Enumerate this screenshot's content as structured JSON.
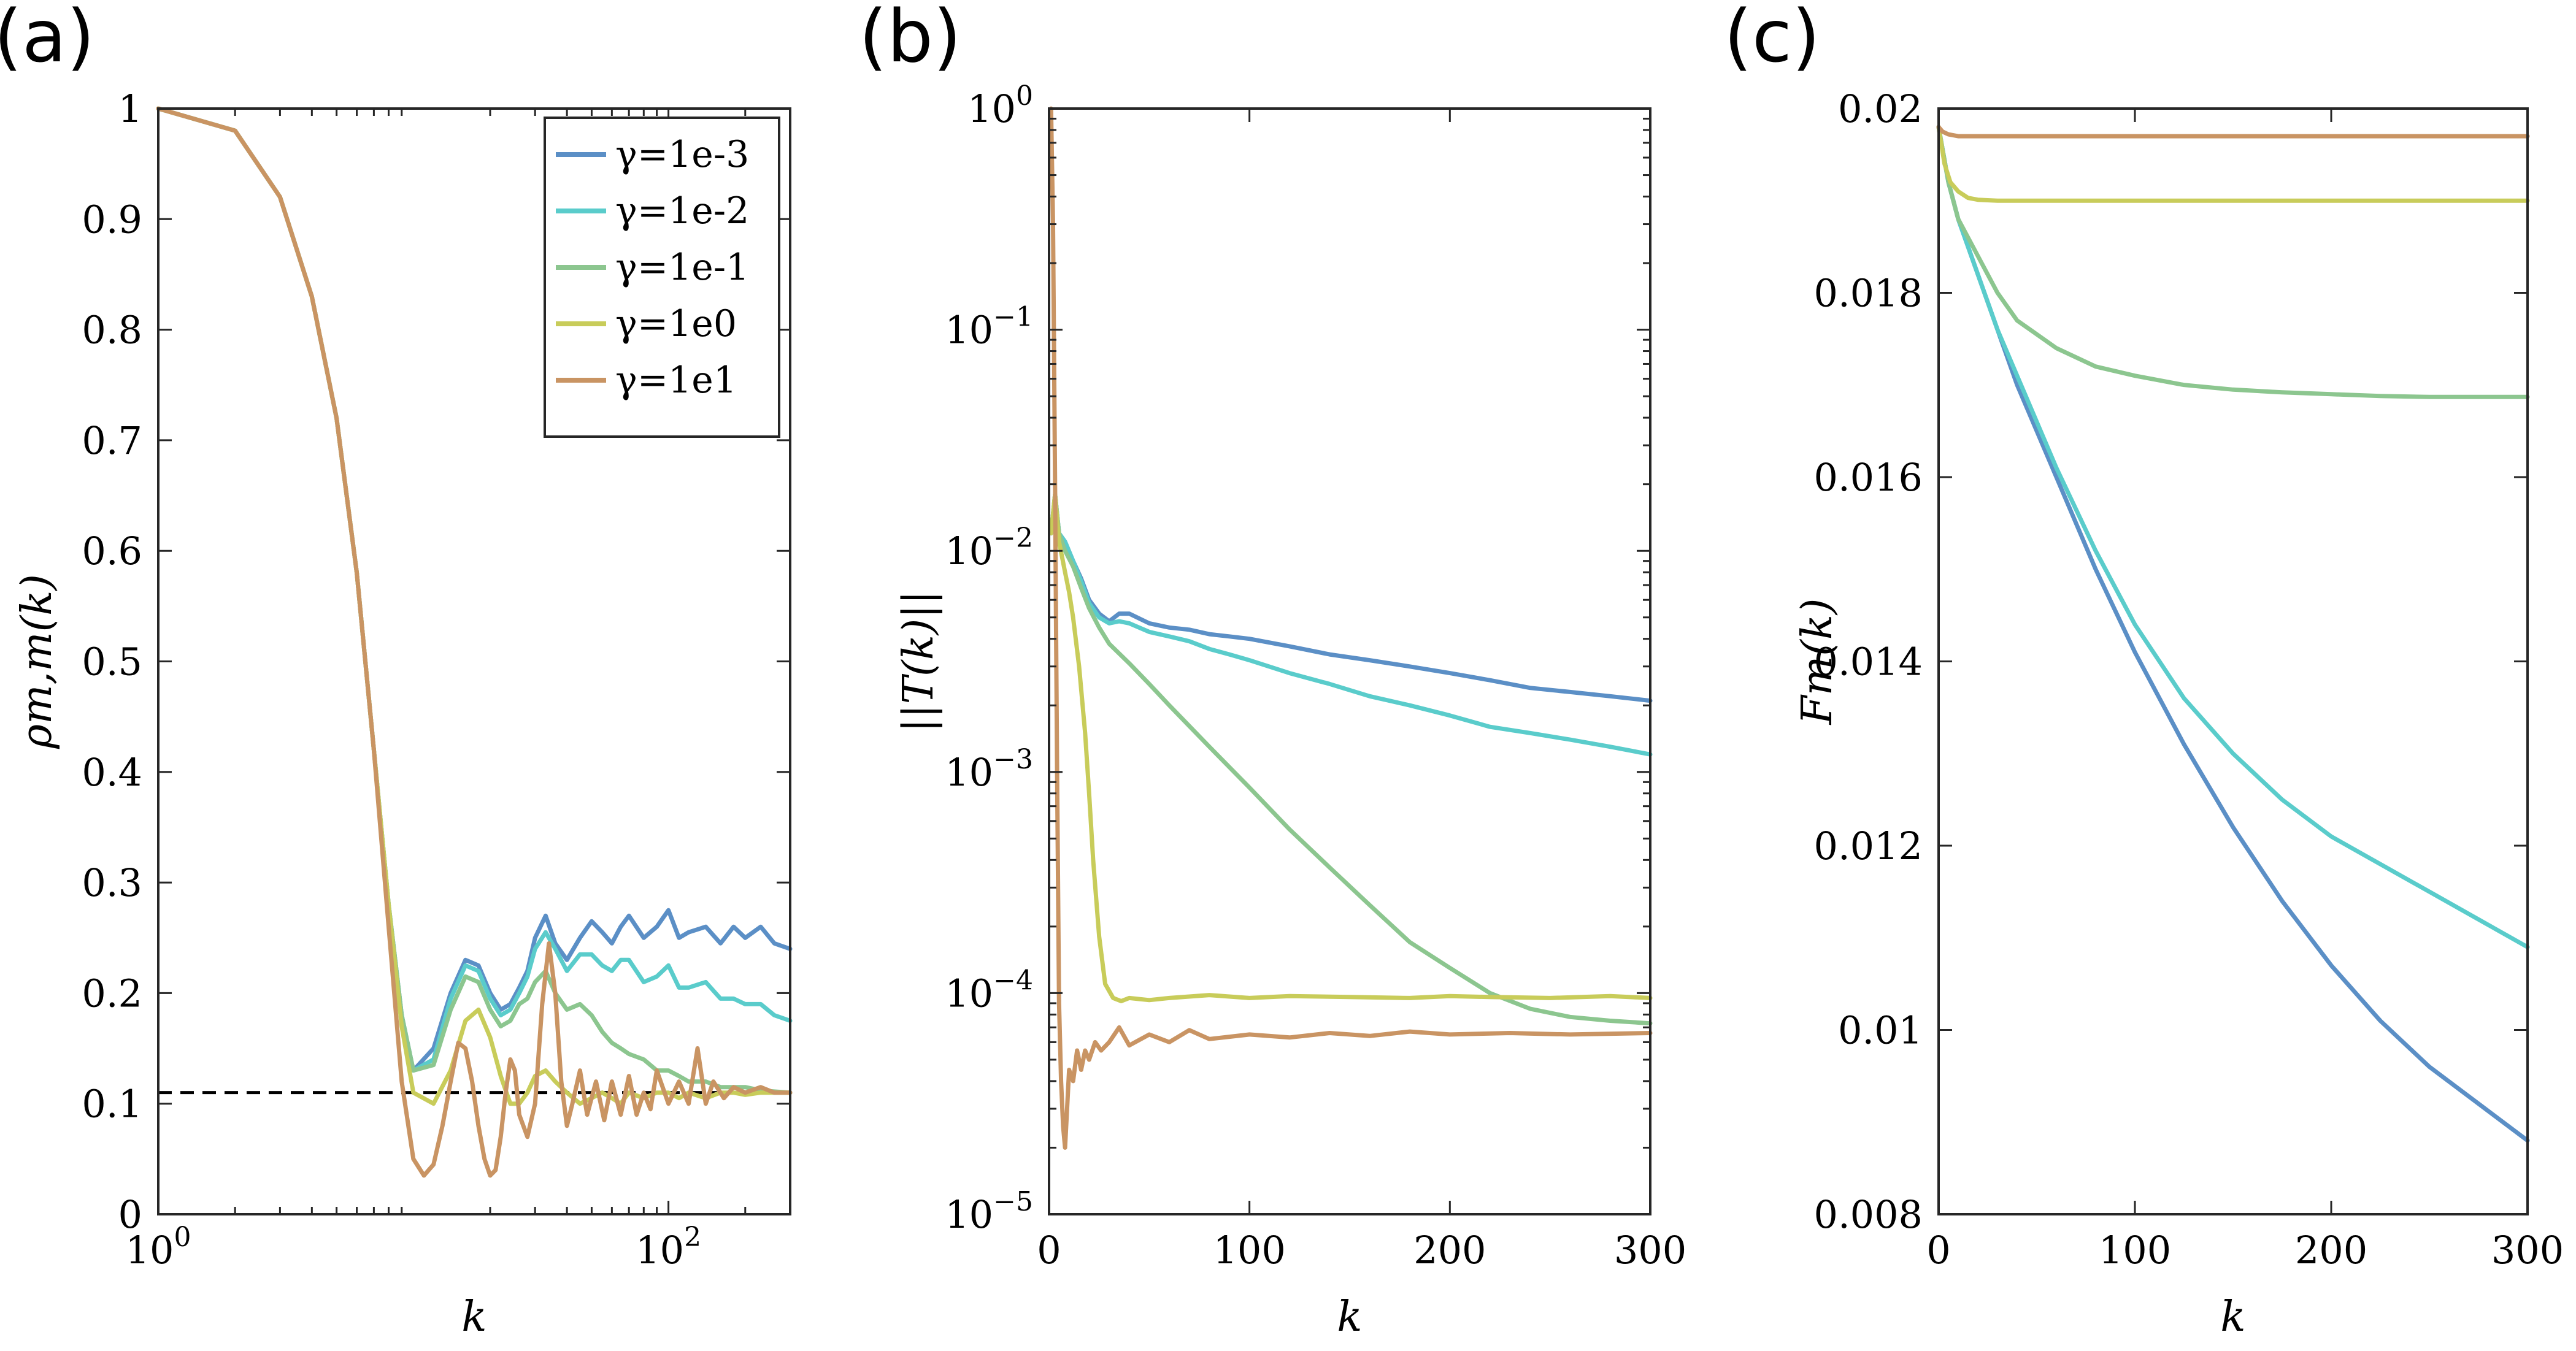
{
  "legend": [
    {
      "label": "γ=1e-3",
      "color": "#5b8fc6"
    },
    {
      "label": "γ=1e-2",
      "color": "#5acccb"
    },
    {
      "label": "γ=1e-1",
      "color": "#8cc68f"
    },
    {
      "label": "γ=1e0",
      "color": "#c8cc5a"
    },
    {
      "label": "γ=1e1",
      "color": "#c99463"
    }
  ],
  "chart_data": [
    {
      "panel": "(a)",
      "type": "line",
      "xlabel": "k",
      "ylabel": "ρm,m(k)",
      "xscale": "log",
      "xlim": [
        1,
        300
      ],
      "ylim": [
        0,
        1
      ],
      "xticks": [
        "10^0",
        "10^2"
      ],
      "yticks": [
        "0",
        "0.1",
        "0.2",
        "0.3",
        "0.4",
        "0.5",
        "0.6",
        "0.7",
        "0.8",
        "0.9",
        "1"
      ],
      "legend_position": "top-right",
      "reference_line": {
        "y": 0.11,
        "style": "dashed",
        "color": "#000000"
      },
      "series": [
        {
          "name": "γ=1e-3",
          "x": [
            1,
            2,
            3,
            4,
            5,
            6,
            7,
            8,
            9,
            10,
            12,
            14,
            16,
            18,
            20,
            22,
            24,
            26,
            28,
            30,
            33,
            36,
            40,
            45,
            50,
            55,
            60,
            65,
            70,
            80,
            90,
            100,
            110,
            120,
            140,
            160,
            180,
            200,
            230,
            260,
            300
          ],
          "values": [
            1,
            0.98,
            0.92,
            0.83,
            0.72,
            0.58,
            0.42,
            0.28,
            0.18,
            0.13,
            0.15,
            0.2,
            0.23,
            0.225,
            0.2,
            0.185,
            0.19,
            0.205,
            0.22,
            0.25,
            0.27,
            0.245,
            0.23,
            0.25,
            0.265,
            0.255,
            0.245,
            0.26,
            0.27,
            0.25,
            0.26,
            0.275,
            0.25,
            0.255,
            0.26,
            0.245,
            0.26,
            0.25,
            0.26,
            0.245,
            0.24
          ]
        },
        {
          "name": "γ=1e-2",
          "x": [
            1,
            2,
            3,
            4,
            5,
            6,
            7,
            8,
            9,
            10,
            12,
            14,
            16,
            18,
            20,
            22,
            24,
            26,
            28,
            30,
            33,
            36,
            40,
            45,
            50,
            55,
            60,
            65,
            70,
            80,
            90,
            100,
            110,
            120,
            140,
            160,
            180,
            200,
            230,
            260,
            300
          ],
          "values": [
            1,
            0.98,
            0.92,
            0.83,
            0.72,
            0.58,
            0.42,
            0.28,
            0.18,
            0.13,
            0.14,
            0.195,
            0.225,
            0.22,
            0.195,
            0.18,
            0.185,
            0.2,
            0.215,
            0.24,
            0.255,
            0.24,
            0.22,
            0.235,
            0.235,
            0.225,
            0.22,
            0.23,
            0.23,
            0.21,
            0.215,
            0.225,
            0.205,
            0.205,
            0.21,
            0.195,
            0.195,
            0.19,
            0.19,
            0.18,
            0.175
          ]
        },
        {
          "name": "γ=1e-1",
          "x": [
            1,
            2,
            3,
            4,
            5,
            6,
            7,
            8,
            9,
            10,
            12,
            14,
            16,
            18,
            20,
            22,
            24,
            26,
            28,
            30,
            33,
            36,
            40,
            45,
            50,
            55,
            60,
            65,
            70,
            80,
            90,
            100,
            110,
            120,
            140,
            160,
            180,
            200,
            230,
            260,
            300
          ],
          "values": [
            1,
            0.98,
            0.92,
            0.83,
            0.72,
            0.58,
            0.42,
            0.28,
            0.18,
            0.13,
            0.135,
            0.185,
            0.215,
            0.21,
            0.185,
            0.17,
            0.175,
            0.19,
            0.195,
            0.21,
            0.22,
            0.2,
            0.185,
            0.19,
            0.18,
            0.165,
            0.155,
            0.15,
            0.145,
            0.14,
            0.13,
            0.13,
            0.125,
            0.12,
            0.12,
            0.115,
            0.115,
            0.115,
            0.112,
            0.111,
            0.11
          ]
        },
        {
          "name": "γ=1e0",
          "x": [
            1,
            2,
            3,
            4,
            5,
            6,
            7,
            8,
            9,
            10,
            12,
            14,
            16,
            18,
            20,
            22,
            24,
            26,
            28,
            30,
            33,
            36,
            40,
            45,
            50,
            55,
            60,
            65,
            70,
            80,
            90,
            100,
            110,
            120,
            140,
            160,
            180,
            200,
            230,
            260,
            300
          ],
          "values": [
            1,
            0.98,
            0.92,
            0.83,
            0.72,
            0.58,
            0.42,
            0.28,
            0.17,
            0.11,
            0.1,
            0.13,
            0.175,
            0.185,
            0.16,
            0.125,
            0.1,
            0.1,
            0.11,
            0.125,
            0.13,
            0.12,
            0.11,
            0.1,
            0.105,
            0.11,
            0.105,
            0.1,
            0.11,
            0.105,
            0.11,
            0.11,
            0.105,
            0.11,
            0.105,
            0.11,
            0.11,
            0.108,
            0.11,
            0.11,
            0.11
          ]
        },
        {
          "name": "γ=1e1",
          "x": [
            1,
            2,
            3,
            4,
            5,
            6,
            7,
            8,
            9,
            10,
            11,
            12,
            13,
            14,
            15,
            16,
            17,
            18,
            19,
            20,
            21,
            22,
            23,
            24,
            25,
            26,
            28,
            30,
            32,
            34,
            36,
            38,
            40,
            42,
            45,
            48,
            52,
            56,
            60,
            65,
            70,
            75,
            80,
            85,
            90,
            100,
            110,
            120,
            130,
            140,
            150,
            165,
            180,
            200,
            230,
            260,
            300
          ],
          "values": [
            1,
            0.98,
            0.92,
            0.83,
            0.72,
            0.58,
            0.42,
            0.26,
            0.12,
            0.05,
            0.035,
            0.045,
            0.08,
            0.12,
            0.155,
            0.15,
            0.12,
            0.08,
            0.05,
            0.035,
            0.04,
            0.07,
            0.11,
            0.14,
            0.13,
            0.09,
            0.07,
            0.1,
            0.19,
            0.245,
            0.2,
            0.12,
            0.08,
            0.1,
            0.13,
            0.09,
            0.12,
            0.085,
            0.12,
            0.09,
            0.125,
            0.09,
            0.11,
            0.095,
            0.13,
            0.1,
            0.12,
            0.1,
            0.15,
            0.1,
            0.12,
            0.105,
            0.115,
            0.11,
            0.115,
            0.11,
            0.11
          ]
        }
      ]
    },
    {
      "panel": "(b)",
      "type": "line",
      "xlabel": "k",
      "ylabel": "||T(k)||",
      "yscale": "log",
      "xlim": [
        0,
        300
      ],
      "ylim": [
        1e-05,
        1
      ],
      "xticks": [
        "0",
        "100",
        "200",
        "300"
      ],
      "yticks": [
        "10^-5",
        "10^-4",
        "10^-3",
        "10^-2",
        "10^-1",
        "10^0"
      ],
      "series": [
        {
          "name": "γ=1e-3",
          "x": [
            1,
            3,
            5,
            8,
            12,
            16,
            20,
            25,
            30,
            35,
            40,
            50,
            60,
            70,
            80,
            90,
            100,
            120,
            140,
            160,
            180,
            200,
            220,
            240,
            260,
            280,
            300
          ],
          "values": [
            0.012,
            0.018,
            0.012,
            0.011,
            0.009,
            0.0075,
            0.006,
            0.0052,
            0.0048,
            0.0052,
            0.0052,
            0.0047,
            0.0045,
            0.0044,
            0.0042,
            0.0041,
            0.004,
            0.0037,
            0.0034,
            0.0032,
            0.003,
            0.0028,
            0.0026,
            0.0024,
            0.0023,
            0.0022,
            0.0021
          ]
        },
        {
          "name": "γ=1e-2",
          "x": [
            1,
            3,
            5,
            8,
            12,
            16,
            20,
            25,
            30,
            35,
            40,
            50,
            60,
            70,
            80,
            90,
            100,
            120,
            140,
            160,
            180,
            200,
            220,
            240,
            260,
            280,
            300
          ],
          "values": [
            0.012,
            0.018,
            0.012,
            0.011,
            0.009,
            0.0073,
            0.0058,
            0.005,
            0.0047,
            0.0048,
            0.0047,
            0.0043,
            0.0041,
            0.0039,
            0.0036,
            0.0034,
            0.0032,
            0.0028,
            0.0025,
            0.0022,
            0.002,
            0.0018,
            0.0016,
            0.0015,
            0.0014,
            0.0013,
            0.0012
          ]
        },
        {
          "name": "γ=1e-1",
          "x": [
            1,
            3,
            5,
            8,
            12,
            16,
            20,
            25,
            30,
            40,
            50,
            60,
            80,
            100,
            120,
            140,
            160,
            180,
            200,
            220,
            240,
            260,
            280,
            300
          ],
          "values": [
            0.012,
            0.018,
            0.012,
            0.01,
            0.0085,
            0.0068,
            0.0055,
            0.0045,
            0.0038,
            0.0031,
            0.0025,
            0.002,
            0.0013,
            0.00085,
            0.00055,
            0.00037,
            0.00025,
            0.00017,
            0.00013,
            0.0001,
            8.5e-05,
            7.8e-05,
            7.5e-05,
            7.3e-05
          ]
        },
        {
          "name": "γ=1e0",
          "x": [
            1,
            3,
            5,
            8,
            10,
            12,
            15,
            18,
            20,
            22,
            25,
            28,
            32,
            36,
            40,
            50,
            60,
            80,
            100,
            120,
            150,
            180,
            200,
            220,
            250,
            280,
            300
          ],
          "values": [
            0.012,
            0.018,
            0.011,
            0.008,
            0.0065,
            0.005,
            0.003,
            0.0015,
            0.0008,
            0.0004,
            0.00018,
            0.00011,
            9.5e-05,
            9.2e-05,
            9.5e-05,
            9.3e-05,
            9.5e-05,
            9.8e-05,
            9.5e-05,
            9.7e-05,
            9.6e-05,
            9.5e-05,
            9.7e-05,
            9.6e-05,
            9.5e-05,
            9.7e-05,
            9.5e-05
          ]
        },
        {
          "name": "γ=1e1",
          "x": [
            1,
            2,
            3,
            4,
            5,
            6,
            7,
            8,
            9,
            10,
            12,
            14,
            16,
            18,
            20,
            23,
            26,
            30,
            35,
            40,
            50,
            60,
            70,
            80,
            100,
            120,
            140,
            160,
            180,
            200,
            230,
            260,
            300
          ],
          "values": [
            1,
            0.3,
            0.02,
            0.001,
            9e-05,
            4e-05,
            2.5e-05,
            2e-05,
            3e-05,
            4.5e-05,
            4e-05,
            5.5e-05,
            4.5e-05,
            5.5e-05,
            5e-05,
            6e-05,
            5.5e-05,
            6e-05,
            7e-05,
            5.8e-05,
            6.5e-05,
            6e-05,
            6.8e-05,
            6.2e-05,
            6.5e-05,
            6.3e-05,
            6.6e-05,
            6.4e-05,
            6.7e-05,
            6.5e-05,
            6.6e-05,
            6.5e-05,
            6.6e-05
          ]
        }
      ]
    },
    {
      "panel": "(c)",
      "type": "line",
      "xlabel": "k",
      "ylabel": "Fm(k)",
      "xlim": [
        0,
        300
      ],
      "ylim": [
        0.008,
        0.02
      ],
      "xticks": [
        "0",
        "100",
        "200",
        "300"
      ],
      "yticks": [
        "0.008",
        "0.01",
        "0.012",
        "0.014",
        "0.016",
        "0.018",
        "0.02"
      ],
      "series": [
        {
          "name": "γ=1e-3",
          "x": [
            0,
            5,
            10,
            20,
            30,
            40,
            60,
            80,
            100,
            125,
            150,
            175,
            200,
            225,
            250,
            275,
            300
          ],
          "values": [
            0.0198,
            0.0192,
            0.0188,
            0.0182,
            0.0176,
            0.017,
            0.016,
            0.015,
            0.0141,
            0.0131,
            0.0122,
            0.0114,
            0.0107,
            0.0101,
            0.0096,
            0.0092,
            0.0088
          ]
        },
        {
          "name": "γ=1e-2",
          "x": [
            0,
            5,
            10,
            20,
            30,
            40,
            60,
            80,
            100,
            125,
            150,
            175,
            200,
            225,
            250,
            275,
            300
          ],
          "values": [
            0.0198,
            0.0192,
            0.0188,
            0.0182,
            0.0176,
            0.0171,
            0.0161,
            0.0152,
            0.0144,
            0.0136,
            0.013,
            0.0125,
            0.0121,
            0.0118,
            0.0115,
            0.0112,
            0.0109
          ]
        },
        {
          "name": "γ=1e-1",
          "x": [
            0,
            5,
            10,
            20,
            30,
            40,
            60,
            80,
            100,
            125,
            150,
            175,
            200,
            225,
            250,
            275,
            300
          ],
          "values": [
            0.0198,
            0.0192,
            0.0188,
            0.0184,
            0.018,
            0.0177,
            0.0174,
            0.0172,
            0.0171,
            0.017,
            0.01695,
            0.01692,
            0.0169,
            0.01688,
            0.01687,
            0.01687,
            0.01687
          ]
        },
        {
          "name": "γ=1e0",
          "x": [
            0,
            3,
            6,
            10,
            15,
            20,
            30,
            50,
            100,
            150,
            200,
            250,
            300
          ],
          "values": [
            0.0198,
            0.0194,
            0.0192,
            0.0191,
            0.01903,
            0.01901,
            0.019,
            0.019,
            0.019,
            0.019,
            0.019,
            0.019,
            0.019
          ]
        },
        {
          "name": "γ=1e1",
          "x": [
            0,
            2,
            5,
            10,
            50,
            100,
            150,
            200,
            250,
            300
          ],
          "values": [
            0.0198,
            0.01975,
            0.01972,
            0.0197,
            0.0197,
            0.0197,
            0.0197,
            0.0197,
            0.0197,
            0.0197
          ]
        }
      ]
    }
  ]
}
